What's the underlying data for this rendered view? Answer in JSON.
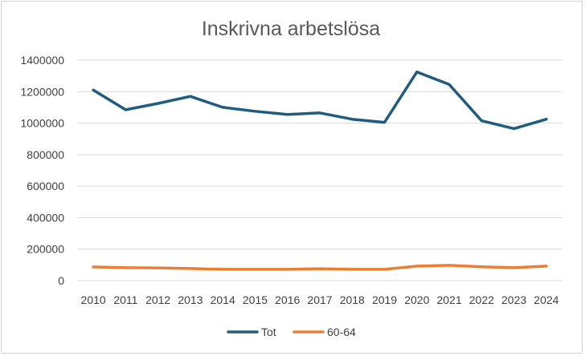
{
  "chart_data": {
    "type": "line",
    "title": "Inskrivna arbetslösa",
    "xlabel": "",
    "ylabel": "",
    "x": [
      "2010",
      "2011",
      "2012",
      "2013",
      "2014",
      "2015",
      "2016",
      "2017",
      "2018",
      "2019",
      "2020",
      "2021",
      "2022",
      "2023",
      "2024"
    ],
    "ylim": [
      0,
      1400000
    ],
    "yticks": [
      0,
      200000,
      400000,
      600000,
      800000,
      1000000,
      1200000,
      1400000
    ],
    "ytick_labels": [
      "0",
      "200000",
      "400000",
      "600000",
      "800000",
      "1000000",
      "1200000",
      "1400000"
    ],
    "grid": true,
    "legend_position": "bottom",
    "series": [
      {
        "name": "Tot",
        "color": "#1f5c7f",
        "values": [
          1210000,
          1085000,
          1125000,
          1170000,
          1100000,
          1075000,
          1055000,
          1065000,
          1025000,
          1005000,
          1325000,
          1245000,
          1015000,
          965000,
          1025000
        ]
      },
      {
        "name": "60-64",
        "color": "#ee7d31",
        "values": [
          87000,
          82000,
          81000,
          77000,
          72000,
          72000,
          72000,
          76000,
          72000,
          72000,
          92000,
          97000,
          88000,
          82000,
          92000
        ]
      }
    ]
  }
}
